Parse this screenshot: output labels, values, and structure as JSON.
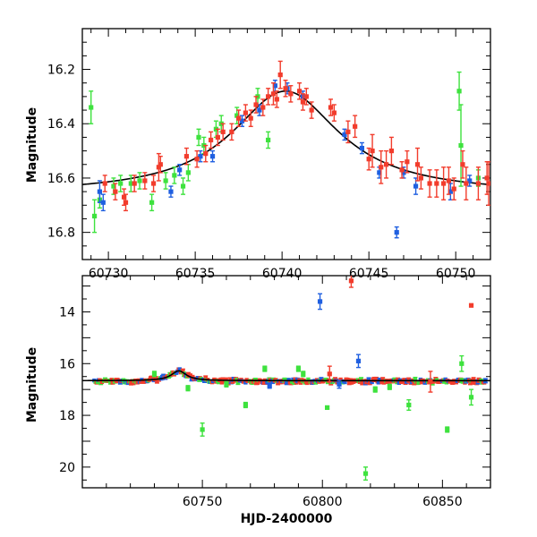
{
  "colors": {
    "green": "#3ee23e",
    "blue": "#1f5fe0",
    "red": "#f23c2c",
    "model": "#000000"
  },
  "chart_data": [
    {
      "type": "scatter",
      "panel": "top",
      "xlabel": "",
      "ylabel": "Magnitude",
      "xlim": [
        60728.5,
        60752
      ],
      "ylim": [
        16.9,
        16.05
      ],
      "y_inverted": true,
      "xticks": [
        60730,
        60735,
        60740,
        60745,
        60750
      ],
      "xtick_labels": [
        "60730",
        "60735",
        "60740",
        "60745",
        "60750"
      ],
      "yticks": [
        16.2,
        16.4,
        16.6,
        16.8
      ],
      "ytick_labels": [
        "16.2",
        "16.4",
        "16.6",
        "16.8"
      ],
      "model_curve": {
        "baseline": 16.66,
        "peak_mag": 16.28,
        "peak_time": 60740.2,
        "width": 3.8
      },
      "series": [
        {
          "color_key": "green",
          "points": [
            [
              60729.0,
              16.34,
              0.06
            ],
            [
              60729.2,
              16.74,
              0.06
            ],
            [
              60729.5,
              16.68,
              0.03
            ],
            [
              60730.3,
              16.63,
              0.03
            ],
            [
              60730.7,
              16.62,
              0.03
            ],
            [
              60731.3,
              16.62,
              0.03
            ],
            [
              60731.8,
              16.61,
              0.03
            ],
            [
              60732.5,
              16.69,
              0.03
            ],
            [
              60733.3,
              16.61,
              0.03
            ],
            [
              60733.8,
              16.59,
              0.03
            ],
            [
              60734.3,
              16.63,
              0.03
            ],
            [
              60734.6,
              16.58,
              0.03
            ],
            [
              60735.2,
              16.45,
              0.03
            ],
            [
              60735.5,
              16.48,
              0.03
            ],
            [
              60736.2,
              16.42,
              0.03
            ],
            [
              60736.5,
              16.4,
              0.03
            ],
            [
              60737.4,
              16.37,
              0.03
            ],
            [
              60738.6,
              16.3,
              0.03
            ],
            [
              60739.2,
              16.46,
              0.03
            ],
            [
              60750.2,
              16.28,
              0.07
            ],
            [
              60750.3,
              16.48,
              0.15
            ],
            [
              60751.3,
              16.6,
              0.03
            ]
          ]
        },
        {
          "color_key": "blue",
          "points": [
            [
              60729.5,
              16.65,
              0.04
            ],
            [
              60729.7,
              16.69,
              0.03
            ],
            [
              60733.6,
              16.65,
              0.02
            ],
            [
              60734.1,
              16.57,
              0.02
            ],
            [
              60735.3,
              16.52,
              0.02
            ],
            [
              60736.0,
              16.52,
              0.02
            ],
            [
              60737.7,
              16.39,
              0.02
            ],
            [
              60738.7,
              16.35,
              0.02
            ],
            [
              60739.6,
              16.26,
              0.02
            ],
            [
              60740.3,
              16.27,
              0.02
            ],
            [
              60741.2,
              16.3,
              0.02
            ],
            [
              60743.6,
              16.44,
              0.02
            ],
            [
              60744.6,
              16.49,
              0.02
            ],
            [
              60745.6,
              16.58,
              0.02
            ],
            [
              60746.6,
              16.8,
              0.02
            ],
            [
              60747.0,
              16.58,
              0.02
            ],
            [
              60747.7,
              16.63,
              0.03
            ],
            [
              60749.7,
              16.65,
              0.03
            ],
            [
              60750.8,
              16.61,
              0.02
            ]
          ]
        },
        {
          "color_key": "red",
          "points": [
            [
              60729.8,
              16.62,
              0.03
            ],
            [
              60730.4,
              16.65,
              0.03
            ],
            [
              60730.9,
              16.67,
              0.03
            ],
            [
              60731.0,
              16.69,
              0.03
            ],
            [
              60731.5,
              16.62,
              0.03
            ],
            [
              60732.1,
              16.61,
              0.03
            ],
            [
              60732.6,
              16.62,
              0.03
            ],
            [
              60732.9,
              16.56,
              0.05
            ],
            [
              60733.0,
              16.55,
              0.03
            ],
            [
              60734.5,
              16.52,
              0.03
            ],
            [
              60735.1,
              16.53,
              0.03
            ],
            [
              60735.6,
              16.51,
              0.03
            ],
            [
              60735.9,
              16.46,
              0.03
            ],
            [
              60736.3,
              16.45,
              0.03
            ],
            [
              60736.6,
              16.43,
              0.03
            ],
            [
              60737.1,
              16.43,
              0.03
            ],
            [
              60737.5,
              16.38,
              0.03
            ],
            [
              60737.9,
              16.36,
              0.03
            ],
            [
              60738.2,
              16.38,
              0.03
            ],
            [
              60738.5,
              16.33,
              0.03
            ],
            [
              60738.9,
              16.34,
              0.03
            ],
            [
              60739.2,
              16.3,
              0.03
            ],
            [
              60739.5,
              16.29,
              0.04
            ],
            [
              60739.7,
              16.31,
              0.03
            ],
            [
              60739.9,
              16.22,
              0.05
            ],
            [
              60740.2,
              16.27,
              0.03
            ],
            [
              60740.5,
              16.29,
              0.03
            ],
            [
              60741.0,
              16.28,
              0.03
            ],
            [
              60741.2,
              16.32,
              0.03
            ],
            [
              60741.4,
              16.3,
              0.03
            ],
            [
              60741.7,
              16.35,
              0.03
            ],
            [
              60742.8,
              16.34,
              0.03
            ],
            [
              60743.0,
              16.36,
              0.03
            ],
            [
              60743.8,
              16.43,
              0.04
            ],
            [
              60744.2,
              16.41,
              0.04
            ],
            [
              60745.0,
              16.53,
              0.04
            ],
            [
              60745.2,
              16.5,
              0.06
            ],
            [
              60745.7,
              16.56,
              0.06
            ],
            [
              60746.0,
              16.55,
              0.05
            ],
            [
              60746.3,
              16.5,
              0.05
            ],
            [
              60746.9,
              16.57,
              0.03
            ],
            [
              60747.2,
              16.54,
              0.04
            ],
            [
              60747.8,
              16.55,
              0.06
            ],
            [
              60748.0,
              16.6,
              0.04
            ],
            [
              60748.5,
              16.62,
              0.05
            ],
            [
              60748.9,
              16.62,
              0.05
            ],
            [
              60749.3,
              16.62,
              0.06
            ],
            [
              60749.6,
              16.61,
              0.05
            ],
            [
              60749.9,
              16.64,
              0.04
            ],
            [
              60750.4,
              16.55,
              0.05
            ],
            [
              60750.6,
              16.62,
              0.06
            ],
            [
              60751.3,
              16.62,
              0.06
            ],
            [
              60751.8,
              16.6,
              0.06
            ],
            [
              60751.9,
              16.62,
              0.08
            ]
          ]
        }
      ]
    },
    {
      "type": "scatter",
      "panel": "bottom",
      "xlabel": "HJD-2400000",
      "ylabel": "Magnitude",
      "xlim": [
        60700,
        60870
      ],
      "ylim": [
        20.8,
        12.6
      ],
      "y_inverted": true,
      "xticks": [
        60750,
        60800,
        60850
      ],
      "xtick_labels": [
        "60750",
        "60800",
        "60850"
      ],
      "yticks": [
        14,
        16,
        18,
        20
      ],
      "ytick_labels": [
        "14",
        "16",
        "18",
        "20"
      ],
      "model_curve": {
        "baseline": 16.66,
        "peak_mag": 16.28,
        "peak_time": 60740.2,
        "width": 3.8
      },
      "outliers": [
        {
          "color_key": "red",
          "x": 60812,
          "y": 12.8,
          "err": 0.25
        },
        {
          "color_key": "blue",
          "x": 60799,
          "y": 13.6,
          "err": 0.3
        },
        {
          "color_key": "red",
          "x": 60862,
          "y": 13.75,
          "err": 0
        },
        {
          "color_key": "blue",
          "x": 60815,
          "y": 15.9,
          "err": 0.25
        },
        {
          "color_key": "green",
          "x": 60750,
          "y": 18.55,
          "err": 0.25
        },
        {
          "color_key": "green",
          "x": 60818,
          "y": 20.25,
          "err": 0.25
        },
        {
          "color_key": "green",
          "x": 60852,
          "y": 18.55,
          "err": 0.1
        },
        {
          "color_key": "green",
          "x": 60836,
          "y": 17.6,
          "err": 0.2
        },
        {
          "color_key": "green",
          "x": 60858,
          "y": 16.0,
          "err": 0.3
        },
        {
          "color_key": "green",
          "x": 60862,
          "y": 17.3,
          "err": 0.3
        },
        {
          "color_key": "green",
          "x": 60768,
          "y": 17.6,
          "err": 0.1
        },
        {
          "color_key": "green",
          "x": 60776,
          "y": 16.2,
          "err": 0.1
        },
        {
          "color_key": "green",
          "x": 60792,
          "y": 16.4,
          "err": 0.1
        },
        {
          "color_key": "green",
          "x": 60802,
          "y": 17.7,
          "err": 0.05
        },
        {
          "color_key": "green",
          "x": 60760,
          "y": 16.8,
          "err": 0.1
        },
        {
          "color_key": "green",
          "x": 60790,
          "y": 16.2,
          "err": 0.1
        },
        {
          "color_key": "red",
          "x": 60803,
          "y": 16.4,
          "err": 0.3
        },
        {
          "color_key": "red",
          "x": 60845,
          "y": 16.7,
          "err": 0.4
        },
        {
          "color_key": "green",
          "x": 60730,
          "y": 16.4,
          "err": 0.1
        },
        {
          "color_key": "green",
          "x": 60822,
          "y": 17.0,
          "err": 0.1
        },
        {
          "color_key": "blue",
          "x": 60778,
          "y": 16.85,
          "err": 0.1
        },
        {
          "color_key": "blue",
          "x": 60807,
          "y": 16.8,
          "err": 0.15
        },
        {
          "color_key": "green",
          "x": 60744,
          "y": 16.95,
          "err": 0.1
        },
        {
          "color_key": "green",
          "x": 60828,
          "y": 16.9,
          "err": 0.1
        }
      ],
      "dense_band": {
        "x_start": 60705,
        "x_end": 60868,
        "y": 16.68,
        "scatter": 0.07
      }
    }
  ]
}
